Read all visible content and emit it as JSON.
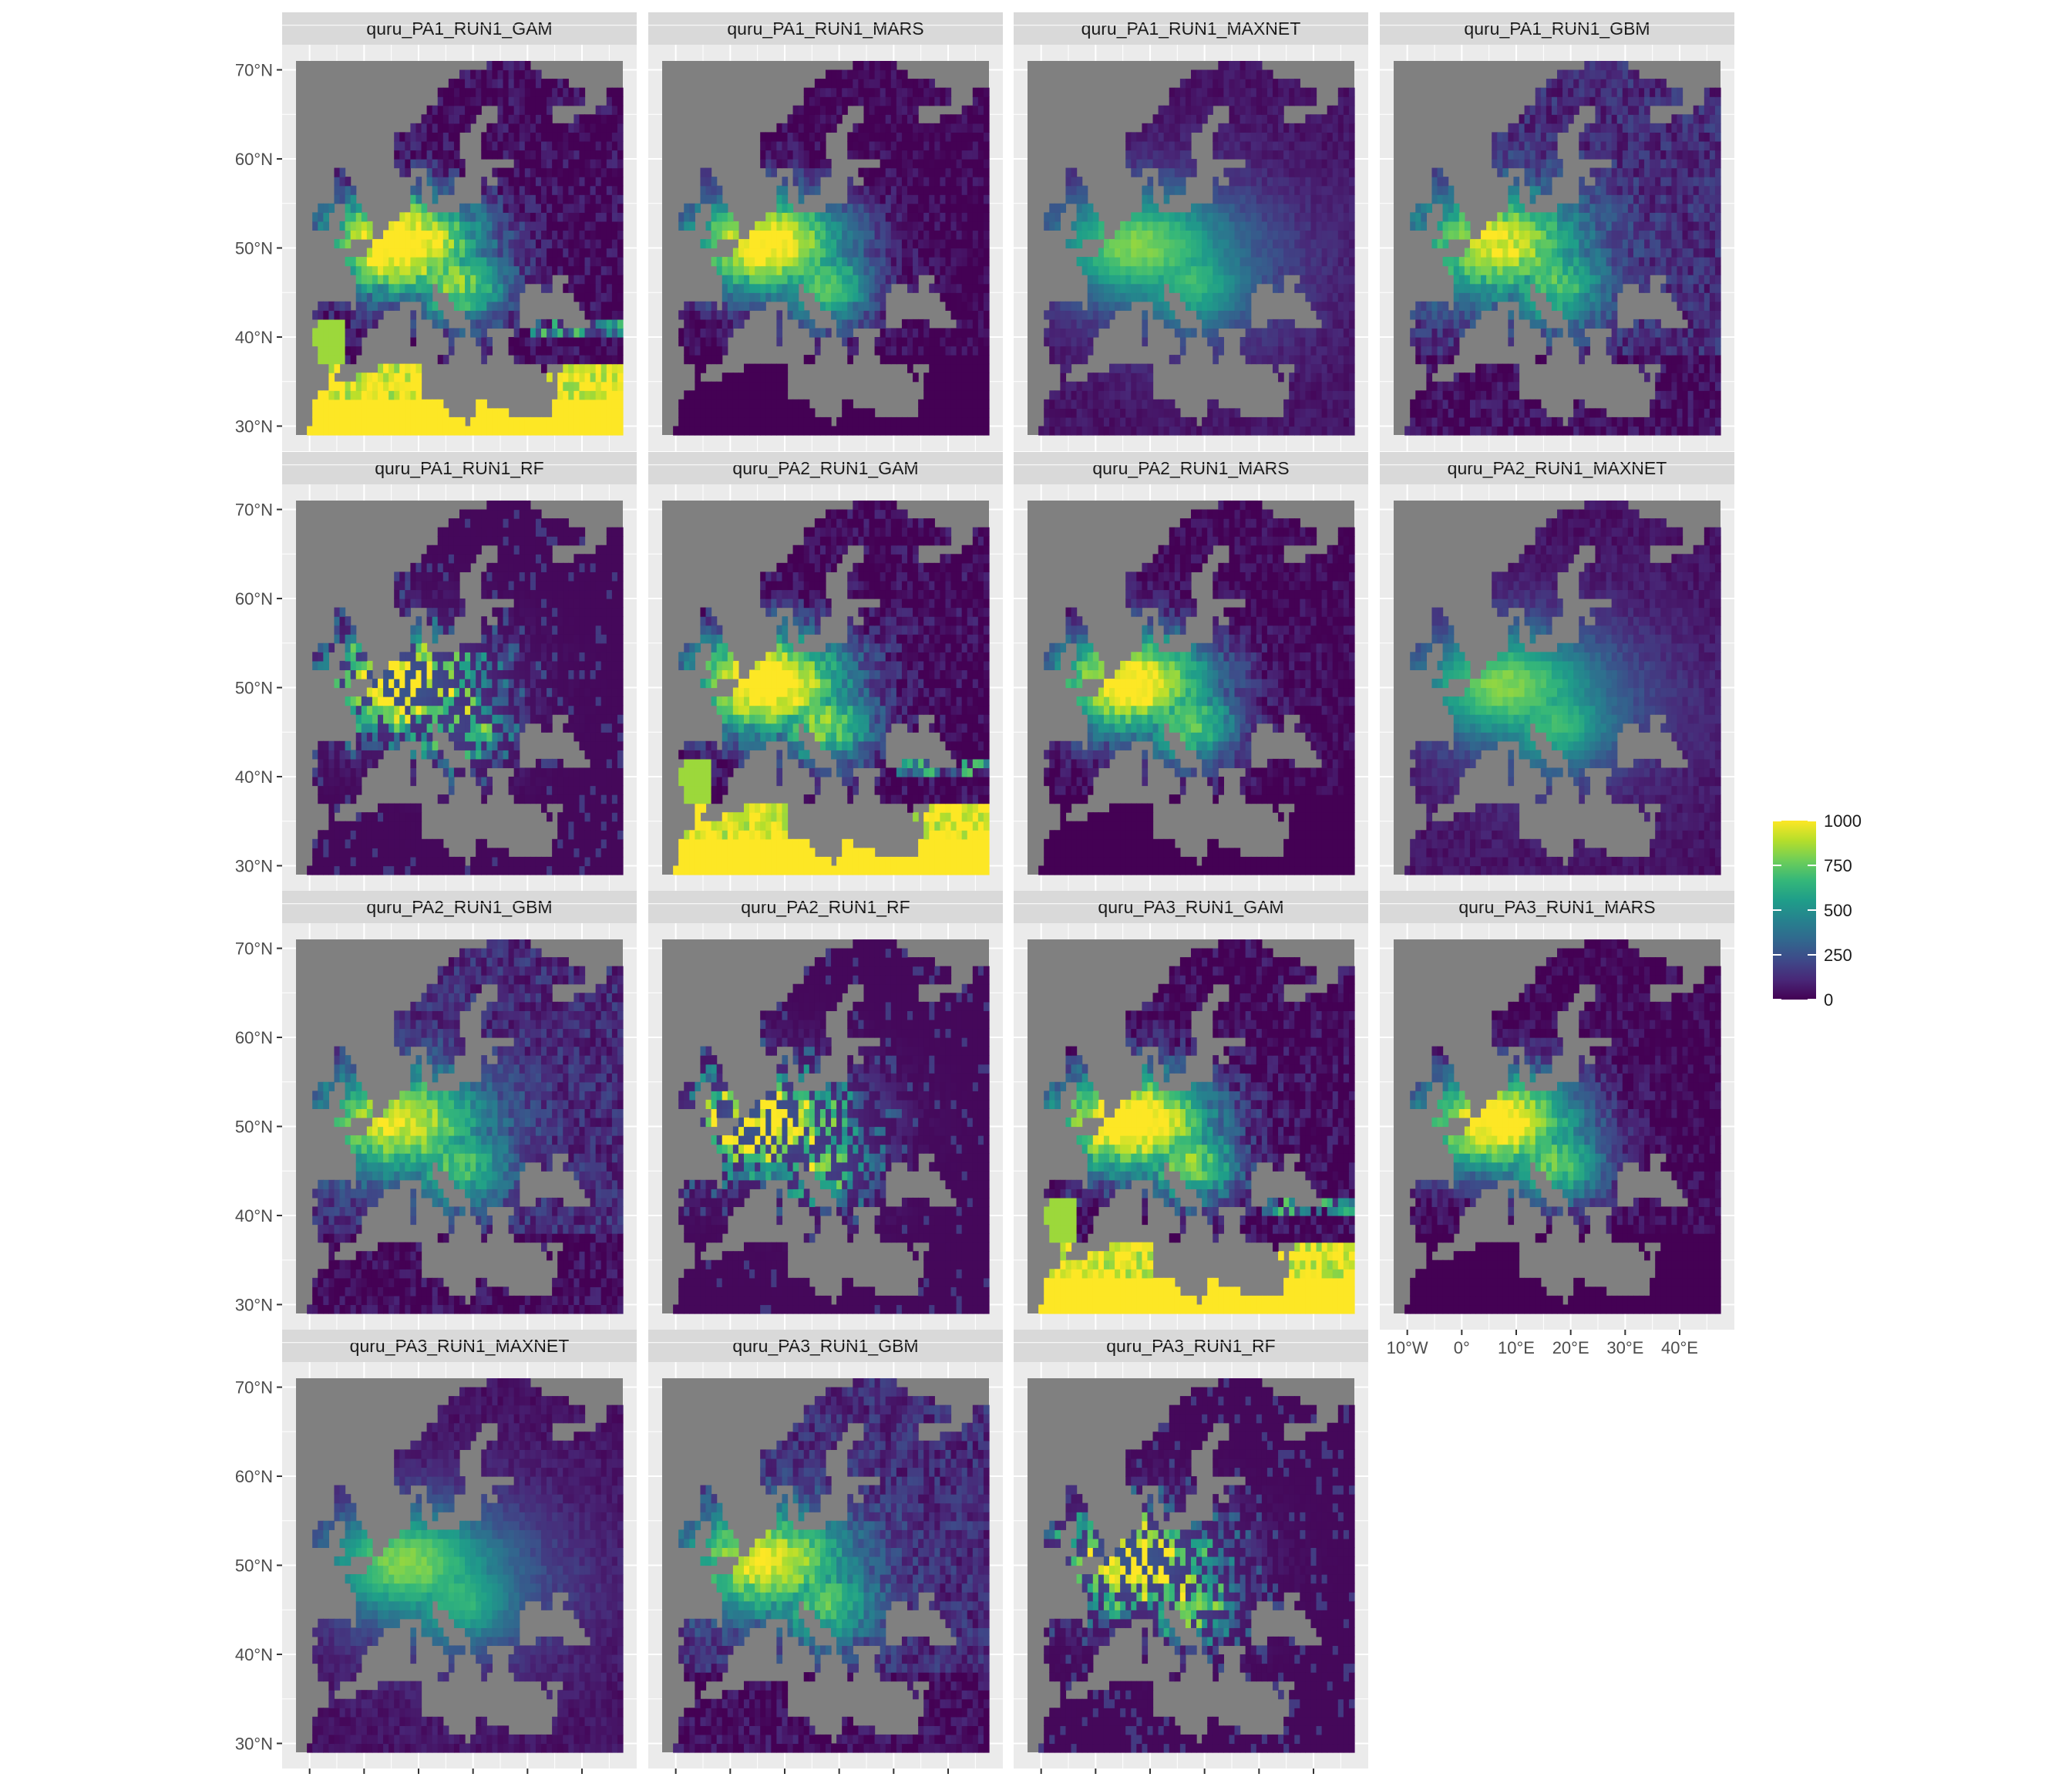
{
  "chart_data": {
    "type": "heatmap",
    "facets": [
      {
        "title": "quru_PA1_RUN1_GAM",
        "profile": "gam"
      },
      {
        "title": "quru_PA1_RUN1_MARS",
        "profile": "mars"
      },
      {
        "title": "quru_PA1_RUN1_MAXNET",
        "profile": "maxnet"
      },
      {
        "title": "quru_PA1_RUN1_GBM",
        "profile": "gbm"
      },
      {
        "title": "quru_PA1_RUN1_RF",
        "profile": "rf"
      },
      {
        "title": "quru_PA2_RUN1_GAM",
        "profile": "gam"
      },
      {
        "title": "quru_PA2_RUN1_MARS",
        "profile": "mars"
      },
      {
        "title": "quru_PA2_RUN1_MAXNET",
        "profile": "maxnet"
      },
      {
        "title": "quru_PA2_RUN1_GBM",
        "profile": "gbm"
      },
      {
        "title": "quru_PA2_RUN1_RF",
        "profile": "rf"
      },
      {
        "title": "quru_PA3_RUN1_GAM",
        "profile": "gam"
      },
      {
        "title": "quru_PA3_RUN1_MARS",
        "profile": "mars"
      },
      {
        "title": "quru_PA3_RUN1_MAXNET",
        "profile": "maxnet"
      },
      {
        "title": "quru_PA3_RUN1_GBM",
        "profile": "gbm"
      },
      {
        "title": "quru_PA3_RUN1_RF",
        "profile": "rf"
      }
    ],
    "x_ticks": [
      {
        "value": -10,
        "label": "10°W"
      },
      {
        "value": 0,
        "label": "0°"
      },
      {
        "value": 10,
        "label": "10°E"
      },
      {
        "value": 20,
        "label": "20°E"
      },
      {
        "value": 30,
        "label": "30°E"
      },
      {
        "value": 40,
        "label": "40°E"
      }
    ],
    "y_ticks": [
      {
        "value": 30,
        "label": "30°N"
      },
      {
        "value": 40,
        "label": "40°N"
      },
      {
        "value": 50,
        "label": "50°N"
      },
      {
        "value": 60,
        "label": "60°N"
      },
      {
        "value": 70,
        "label": "70°N"
      }
    ],
    "xlim": [
      -12.5,
      47.5
    ],
    "ylim": [
      29,
      71
    ],
    "grid": true,
    "colorbar": {
      "ticks": [
        {
          "value": 0,
          "label": "0"
        },
        {
          "value": 250,
          "label": "250"
        },
        {
          "value": 500,
          "label": "500"
        },
        {
          "value": 750,
          "label": "750"
        },
        {
          "value": 1000,
          "label": "1000"
        }
      ],
      "range": [
        0,
        1000
      ],
      "palette": "viridis",
      "position": "right"
    },
    "colors": {
      "panel_background": "#ebebeb",
      "strip_background": "#d9d9d9",
      "na_value": "#808080",
      "viridis": [
        "#440154",
        "#482878",
        "#3e4a89",
        "#31688e",
        "#26828e",
        "#1f9e89",
        "#35b779",
        "#6ece58",
        "#b5de2b",
        "#fde725"
      ]
    }
  }
}
